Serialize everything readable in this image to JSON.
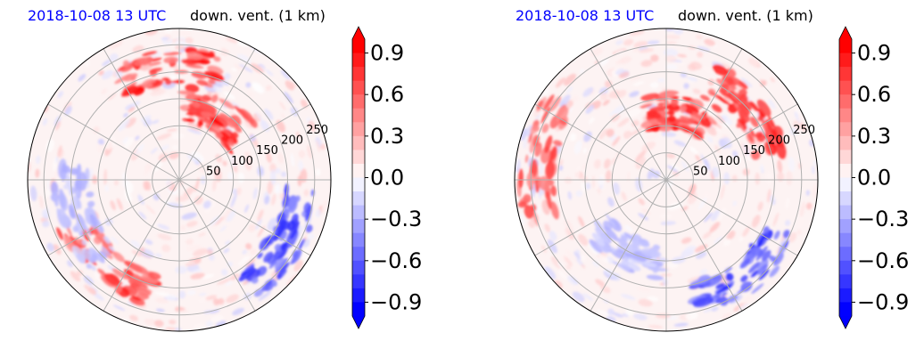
{
  "panels": [
    {
      "title_date": "2018-10-08 13 UTC",
      "title_var": "down. vent. (1 km)"
    },
    {
      "title_date": "2018-10-08 13 UTC",
      "title_var": "down. vent. (1 km)"
    }
  ],
  "colors": {
    "title_date": "#0000ff",
    "positive": "#ff0000",
    "negative": "#0000ff",
    "neutral": "#ffffff",
    "grid": "#b0b0b0"
  },
  "chart_data": [
    {
      "type": "heatmap",
      "projection": "polar",
      "title": "down. vent. (1 km)",
      "title_left": "2018-10-08 13 UTC",
      "ring_labels": [
        "50",
        "100",
        "150",
        "200",
        "250"
      ],
      "grid": true,
      "colorbar": {
        "ticks": [
          "0.9",
          "0.6",
          "0.3",
          "0.0",
          "−0.3",
          "−0.6",
          "−0.9"
        ],
        "range": [
          -1.0,
          1.0
        ],
        "cmap": "bwr",
        "extend": "both"
      },
      "features": [
        {
          "sign": "positive",
          "theta_deg": 95,
          "r_km": 210,
          "strength": 0.9
        },
        {
          "sign": "positive",
          "theta_deg": 60,
          "r_km": 140,
          "strength": 0.9
        },
        {
          "sign": "positive",
          "theta_deg": 230,
          "r_km": 210,
          "strength": 0.8
        },
        {
          "sign": "negative",
          "theta_deg": 330,
          "r_km": 230,
          "strength": 0.8
        },
        {
          "sign": "negative",
          "theta_deg": 200,
          "r_km": 200,
          "strength": 0.3
        }
      ]
    },
    {
      "type": "heatmap",
      "projection": "polar",
      "title": "down. vent. (1 km)",
      "title_left": "2018-10-08 13 UTC",
      "ring_labels": [
        "50",
        "100",
        "150",
        "200",
        "250"
      ],
      "grid": true,
      "colorbar": {
        "ticks": [
          "0.9",
          "0.6",
          "0.3",
          "0.0",
          "−0.3",
          "−0.6",
          "−0.9"
        ],
        "range": [
          -1.0,
          1.0
        ],
        "cmap": "bwr",
        "extend": "both"
      },
      "features": [
        {
          "sign": "positive",
          "theta_deg": 80,
          "r_km": 130,
          "strength": 0.9
        },
        {
          "sign": "positive",
          "theta_deg": 40,
          "r_km": 200,
          "strength": 0.9
        },
        {
          "sign": "positive",
          "theta_deg": 170,
          "r_km": 240,
          "strength": 0.7
        },
        {
          "sign": "negative",
          "theta_deg": 310,
          "r_km": 230,
          "strength": 0.8
        },
        {
          "sign": "negative",
          "theta_deg": 240,
          "r_km": 150,
          "strength": 0.3
        }
      ]
    }
  ]
}
